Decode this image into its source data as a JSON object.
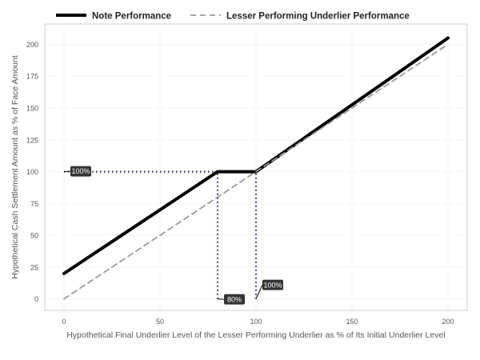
{
  "chart_data": {
    "type": "line",
    "xlabel": "Hypothetical Final Underlier Level of the Lesser Performing Underlier as % of Its Initial Underlier Level",
    "ylabel": "Hypothetical Cash Settlement Amount as % of Face Amount",
    "xlim": [
      -10,
      210
    ],
    "ylim": [
      -9,
      216
    ],
    "xticks": [
      0,
      50,
      100,
      150,
      200
    ],
    "yticks": [
      0,
      25,
      50,
      75,
      100,
      125,
      150,
      175,
      200
    ],
    "grid": true,
    "legend_position": "top",
    "series": [
      {
        "name": "Note Performance",
        "style": "solid",
        "color": "#000000",
        "x": [
          0,
          80,
          100,
          200
        ],
        "y": [
          20,
          100,
          100,
          205
        ]
      },
      {
        "name": "Lesser Performing Underlier Performance",
        "style": "dashed",
        "color": "#999999",
        "x": [
          0,
          200
        ],
        "y": [
          0,
          200
        ]
      }
    ],
    "annotations": [
      {
        "label": "100%",
        "x": 0,
        "y": 100
      },
      {
        "label": "80%",
        "x": 80,
        "y": 0
      },
      {
        "label": "100%",
        "x": 100,
        "y": 0
      }
    ],
    "reference_lines": [
      {
        "from": [
          0,
          100
        ],
        "to": [
          80,
          100
        ],
        "style": "dotted",
        "color": "#1a1a4e"
      },
      {
        "from": [
          80,
          0
        ],
        "to": [
          80,
          100
        ],
        "style": "dotted",
        "color": "#1a1a4e"
      },
      {
        "from": [
          100,
          0
        ],
        "to": [
          100,
          100
        ],
        "style": "dotted",
        "color": "#1a1a4e"
      }
    ],
    "colors": {
      "grid": "#e6e6e6",
      "panel_border": "#cccccc",
      "callout_bg": "#333333",
      "callout_text": "#ffffff"
    }
  }
}
